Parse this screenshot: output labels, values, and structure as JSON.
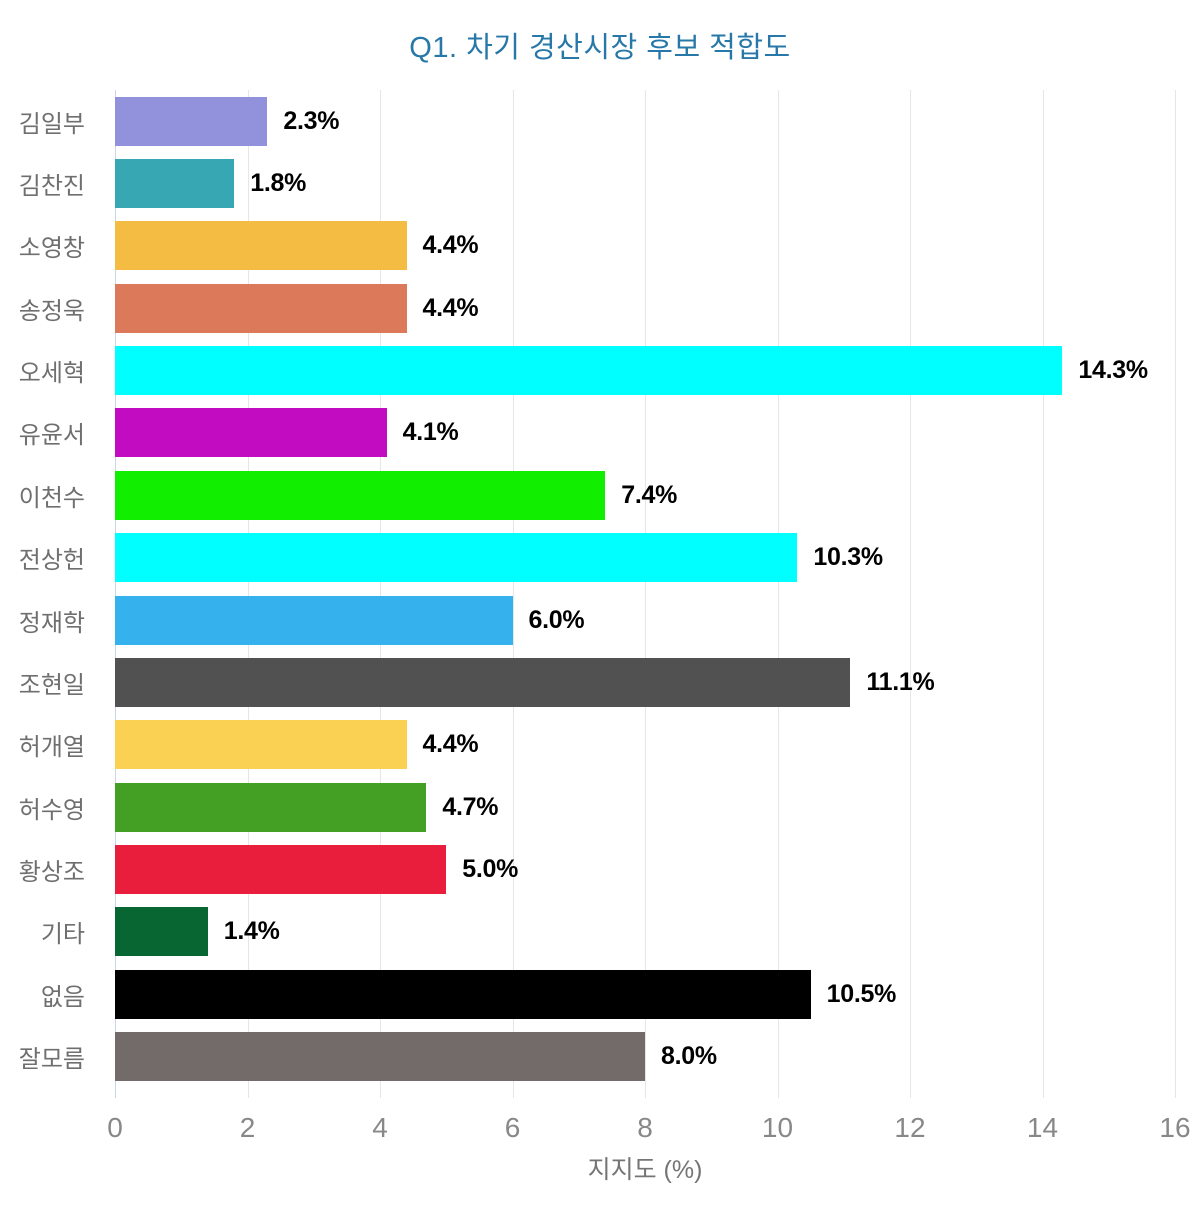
{
  "chart_data": {
    "type": "bar",
    "orientation": "horizontal",
    "title": "Q1. 차기 경산시장 후보 적합도",
    "xlabel": "지지도 (%)",
    "xlim": [
      0,
      16
    ],
    "xticks": [
      0,
      2,
      4,
      6,
      8,
      10,
      12,
      14,
      16
    ],
    "grid": "vertical",
    "legend": "none",
    "categories": [
      "김일부",
      "김찬진",
      "소영창",
      "송정욱",
      "오세혁",
      "유윤서",
      "이천수",
      "전상헌",
      "정재학",
      "조현일",
      "허개열",
      "허수영",
      "황상조",
      "기타",
      "없음",
      "잘모름"
    ],
    "values": [
      2.3,
      1.8,
      4.4,
      4.4,
      14.3,
      4.1,
      7.4,
      10.3,
      6.0,
      11.1,
      4.4,
      4.7,
      5.0,
      1.4,
      10.5,
      8.0
    ],
    "value_labels": [
      "2.3%",
      "1.8%",
      "4.4%",
      "4.4%",
      "14.3%",
      "4.1%",
      "7.4%",
      "10.3%",
      "6.0%",
      "11.1%",
      "4.4%",
      "4.7%",
      "5.0%",
      "1.4%",
      "10.5%",
      "8.0%"
    ],
    "bar_colors": [
      "#9191dc",
      "#38a7b4",
      "#f4bc42",
      "#dc795b",
      "#00ffff",
      "#c20cc2",
      "#11ee00",
      "#00ffff",
      "#35b2ee",
      "#515151",
      "#fbd153",
      "#44a024",
      "#e81e3c",
      "#076632",
      "#000000",
      "#736a6a"
    ]
  },
  "style_colors": {
    "title_color": "#2778a9",
    "category_label_color": "#6f6f6f",
    "tick_label_color": "#888888",
    "axis_title_color": "#757575",
    "gridline_color": "#e6e6e6",
    "axis_line_color": "#ccd6eb",
    "value_label_color": "#000000",
    "background": "#ffffff"
  }
}
